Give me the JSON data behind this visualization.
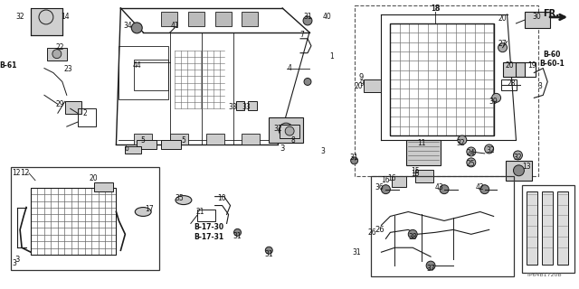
{
  "bg_color": "#ffffff",
  "fig_width": 6.4,
  "fig_height": 3.2,
  "diagram_id": "TP64B1720B",
  "fr_label": "FR.",
  "b60_label": "B-60",
  "b601_label": "B-60-1",
  "b61_label": "B-61",
  "b1730_label": "B-17-30",
  "b1731_label": "B-17-31",
  "line_color": "#1a1a1a",
  "label_color": "#111111"
}
